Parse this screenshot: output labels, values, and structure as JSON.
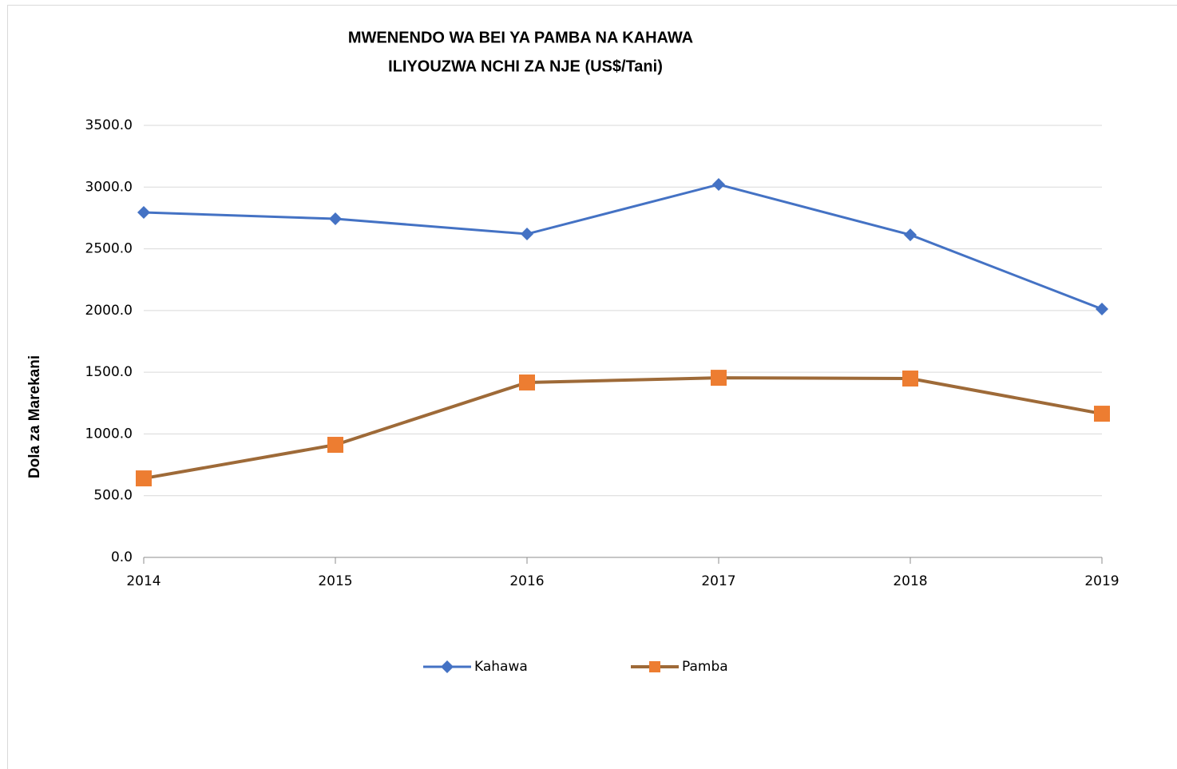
{
  "chart_data": {
    "type": "line",
    "title": [
      "MWENENDO WA BEI YA PAMBA NA KAHAWA",
      "ILIYOUZWA NCHI ZA NJE (US$/Tani)"
    ],
    "y_label": "Dola za Marekani",
    "categories": [
      "2014",
      "2015",
      "2016",
      "2017",
      "2018",
      "2019"
    ],
    "series": [
      {
        "name": "Kahawa",
        "color": "#4472c4",
        "marker_color": "#4472c4",
        "marker": "diamond",
        "values": [
          2795,
          2743,
          2620,
          3021,
          2613,
          2012
        ]
      },
      {
        "name": "Pamba",
        "color": "#9e6a38",
        "marker_color": "#ed7d31",
        "marker": "square",
        "values": [
          640,
          912,
          1417,
          1455,
          1449,
          1164
        ]
      }
    ],
    "ylim": [
      0,
      3500
    ],
    "yticks": [
      {
        "value": 0,
        "label": "0.0"
      },
      {
        "value": 500,
        "label": "500.0"
      },
      {
        "value": 1000,
        "label": "1000.0"
      },
      {
        "value": 1500,
        "label": "1500.0"
      },
      {
        "value": 2000,
        "label": "2000.0"
      },
      {
        "value": 2500,
        "label": "2500.0"
      },
      {
        "value": 3000,
        "label": "3000.0"
      },
      {
        "value": 3500,
        "label": "3500.0"
      }
    ],
    "grid": true,
    "legend": "bottom"
  }
}
